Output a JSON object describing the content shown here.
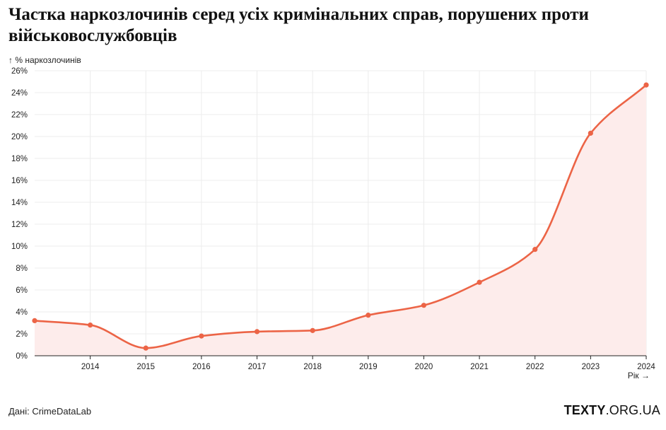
{
  "title": "Частка наркозлочинів серед усіх кримінальних справ, порушених проти військовослужбовців",
  "source": "Дані: CrimeDataLab",
  "logo": {
    "bold": "TEXTY",
    "rest": ".ORG.UA"
  },
  "colors": {
    "line": "#ec6446",
    "area": "#fdeceb",
    "grid": "#ececec",
    "axis": "#222222"
  },
  "chart_data": {
    "type": "area",
    "ylabel": "↑ % наркозлочинів",
    "xlabel": "Рік →",
    "xlim": [
      2013,
      2024
    ],
    "ylim": [
      0,
      26
    ],
    "y_ticks": [
      0,
      2,
      4,
      6,
      8,
      10,
      12,
      14,
      16,
      18,
      20,
      22,
      24,
      26
    ],
    "y_tick_labels": [
      "0%",
      "2%",
      "4%",
      "6%",
      "8%",
      "10%",
      "12%",
      "14%",
      "16%",
      "18%",
      "20%",
      "22%",
      "24%",
      "26%"
    ],
    "x_ticks": [
      2014,
      2015,
      2016,
      2017,
      2018,
      2019,
      2020,
      2021,
      2022,
      2023,
      2024
    ],
    "x_tick_labels": [
      "2014",
      "2015",
      "2016",
      "2017",
      "2018",
      "2019",
      "2020",
      "2021",
      "2022",
      "2023",
      "2024"
    ],
    "grid": true,
    "series": [
      {
        "x": [
          2013,
          2014,
          2015,
          2016,
          2017,
          2018,
          2019,
          2020,
          2021,
          2022,
          2023,
          2024
        ],
        "values": [
          3.2,
          2.8,
          0.7,
          1.8,
          2.2,
          2.3,
          3.7,
          4.6,
          6.7,
          9.7,
          20.3,
          24.7
        ]
      }
    ]
  }
}
